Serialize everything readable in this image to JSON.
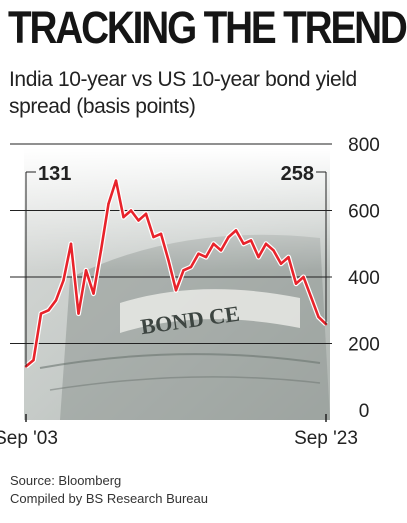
{
  "headline": "TRACKING THE TREND",
  "subtitle": "India 10-year vs US 10-year bond yield spread (basis points)",
  "source_lines": [
    "Source: Bloomberg",
    "Compiled by BS Research Bureau"
  ],
  "colors": {
    "line": "#e8232b",
    "line_glow": "#ffffff",
    "grid": "#222222",
    "text": "#222222"
  },
  "chart_data": {
    "type": "line",
    "title": "India 10-year vs US 10-year bond yield spread (basis points)",
    "xlabel": "",
    "ylabel": "",
    "ylim": [
      0,
      800
    ],
    "yticks": [
      0,
      200,
      400,
      600,
      800
    ],
    "xtick_labels": [
      "Sep '03",
      "Sep '23"
    ],
    "grid": true,
    "background_image": "bond-certificate-photo",
    "series": [
      {
        "name": "",
        "x": [
          "Sep '03",
          "Mar '04",
          "Sep '04",
          "Mar '05",
          "Sep '05",
          "Mar '06",
          "Sep '06",
          "Mar '07",
          "Sep '07",
          "Mar '08",
          "Sep '08",
          "Mar '09",
          "Sep '09",
          "Mar '10",
          "Sep '10",
          "Mar '11",
          "Sep '11",
          "Mar '12",
          "Sep '12",
          "Mar '13",
          "Sep '13",
          "Mar '14",
          "Sep '14",
          "Mar '15",
          "Sep '15",
          "Mar '16",
          "Sep '16",
          "Mar '17",
          "Sep '17",
          "Mar '18",
          "Sep '18",
          "Mar '19",
          "Sep '19",
          "Mar '20",
          "Sep '20",
          "Mar '21",
          "Sep '21",
          "Mar '22",
          "Sep '22",
          "Mar '23",
          "Sep '23"
        ],
        "values": [
          131,
          150,
          290,
          300,
          330,
          390,
          500,
          290,
          420,
          350,
          480,
          620,
          690,
          580,
          600,
          570,
          590,
          520,
          530,
          450,
          360,
          420,
          430,
          470,
          460,
          500,
          480,
          520,
          540,
          500,
          510,
          460,
          500,
          480,
          440,
          460,
          380,
          400,
          340,
          280,
          258
        ]
      }
    ],
    "annotations": [
      {
        "text": "131",
        "x": "Sep '03",
        "y": 131
      },
      {
        "text": "258",
        "x": "Sep '23",
        "y": 258
      }
    ]
  }
}
